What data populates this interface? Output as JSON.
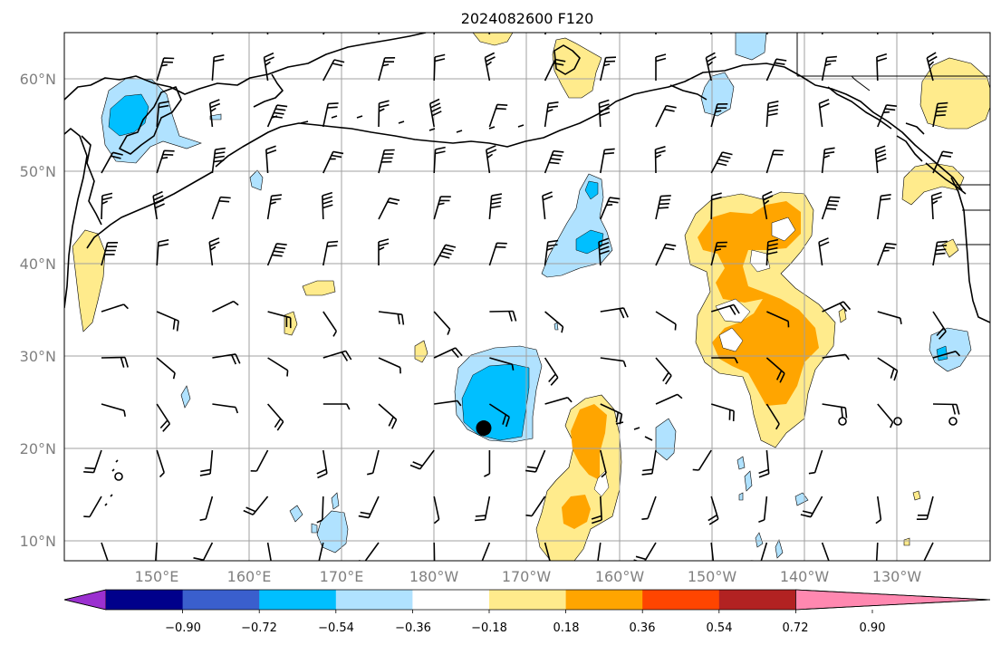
{
  "title": "2024082600 F120",
  "map": {
    "lat_labels": [
      "60°N",
      "50°N",
      "40°N",
      "30°N",
      "20°N",
      "10°N"
    ],
    "lon_labels": [
      "150°E",
      "160°E",
      "170°E",
      "180°W",
      "170°W",
      "160°W",
      "150°W",
      "140°W",
      "130°W"
    ],
    "marker": {
      "lon": -174.7,
      "lat": 22.2
    }
  },
  "colorbar": {
    "ticks": [
      "−0.90",
      "−0.72",
      "−0.54",
      "−0.36",
      "−0.18",
      "0.18",
      "0.36",
      "0.54",
      "0.72",
      "0.90"
    ],
    "colors": [
      "#9b30d0",
      "#00008b",
      "#3a5fcd",
      "#00bfff",
      "#b0e2ff",
      "#ffffff",
      "#ffeb8c",
      "#ffa500",
      "#ff4500",
      "#b22222",
      "#ff88b0"
    ],
    "extend": "both"
  },
  "colors": {
    "lightblue": "#b0e2ff",
    "blue": "#00bfff",
    "yellow": "#ffeb8c",
    "orange": "#ffa500"
  }
}
